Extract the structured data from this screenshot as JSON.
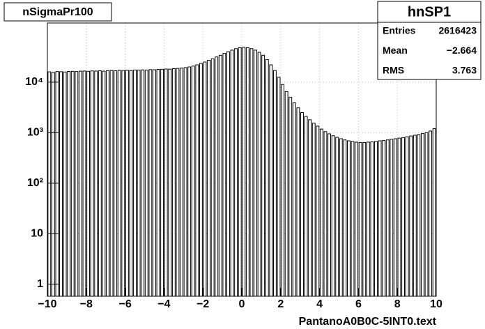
{
  "chart_data": {
    "type": "histogram",
    "title": "nSigmaPr100",
    "x_label": "PantanoA0B0C-5INT0.text",
    "stats": {
      "name": "hnSP1",
      "rows": [
        [
          "Entries",
          "2616423"
        ],
        [
          "Mean",
          "−2.664"
        ],
        [
          "RMS",
          "3.763"
        ]
      ]
    },
    "bins": [
      -10,
      -9.8,
      -9.6,
      -9.4,
      -9.2,
      -9,
      -8.8,
      -8.6,
      -8.4,
      -8.2,
      -8,
      -7.8,
      -7.6,
      -7.4,
      -7.2,
      -7,
      -6.8,
      -6.6,
      -6.4,
      -6.2,
      -6,
      -5.8,
      -5.6,
      -5.4,
      -5.2,
      -5,
      -4.8,
      -4.6,
      -4.4,
      -4.2,
      -4,
      -3.8,
      -3.6,
      -3.4,
      -3.2,
      -3,
      -2.8,
      -2.6,
      -2.4,
      -2.2,
      -2,
      -1.8,
      -1.6,
      -1.4,
      -1.2,
      -1,
      -0.8,
      -0.6,
      -0.4,
      -0.2,
      0,
      0.2,
      0.4,
      0.6,
      0.8,
      1,
      1.2,
      1.4,
      1.6,
      1.8,
      2,
      2.2,
      2.4,
      2.6,
      2.8,
      3,
      3.2,
      3.4,
      3.6,
      3.8,
      4,
      4.2,
      4.4,
      4.6,
      4.8,
      5,
      5.2,
      5.4,
      5.6,
      5.8,
      6,
      6.2,
      6.4,
      6.6,
      6.8,
      7,
      7.2,
      7.4,
      7.6,
      7.8,
      8,
      8.2,
      8.4,
      8.6,
      8.8,
      9,
      9.2,
      9.4,
      9.6,
      9.8,
      10
    ],
    "values": [
      16000,
      15600,
      16200,
      16100,
      15900,
      16300,
      16400,
      16200,
      16500,
      16600,
      16400,
      16700,
      16600,
      16800,
      16500,
      16900,
      17000,
      16800,
      17100,
      17000,
      17200,
      17000,
      17400,
      17300,
      17500,
      17400,
      17700,
      17600,
      17900,
      18000,
      18200,
      18100,
      18500,
      18700,
      19000,
      19400,
      20000,
      20800,
      22000,
      23500,
      25000,
      27000,
      29000,
      31500,
      34000,
      37000,
      40000,
      43000,
      46000,
      48000,
      49000,
      48000,
      46000,
      43000,
      39000,
      34000,
      28000,
      22000,
      17000,
      12500,
      9000,
      6500,
      5000,
      3900,
      3100,
      2500,
      2100,
      1800,
      1550,
      1350,
      1180,
      1050,
      950,
      870,
      810,
      760,
      720,
      690,
      670,
      650,
      640,
      640,
      650,
      660,
      670,
      690,
      700,
      720,
      740,
      760,
      780,
      800,
      830,
      860,
      890,
      920,
      960,
      1000,
      1080,
      1200
    ],
    "color": "#000000",
    "log_y": true,
    "grid": true,
    "xlim": [
      -10,
      10
    ],
    "xticks": [
      {
        "value": -10,
        "label": "−10"
      },
      {
        "value": -8,
        "label": "−8"
      },
      {
        "value": -6,
        "label": "−6"
      },
      {
        "value": -4,
        "label": "−4"
      },
      {
        "value": -2,
        "label": "−2"
      },
      0,
      2,
      4,
      6,
      8,
      10
    ],
    "ylim": [
      0.58,
      148000
    ],
    "yticks": [
      1,
      10,
      {
        "value": 100,
        "label": "10²"
      },
      {
        "value": 1000,
        "label": "10³"
      },
      {
        "value": 10000,
        "label": "10⁴"
      }
    ]
  }
}
